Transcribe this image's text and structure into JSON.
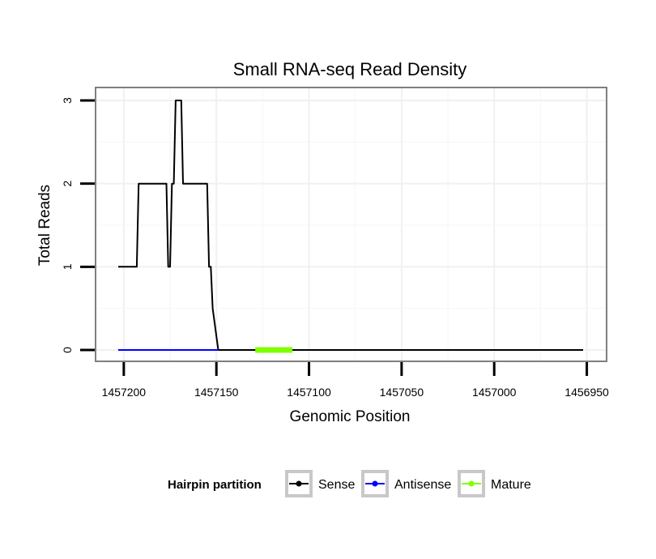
{
  "chart_data": {
    "type": "line",
    "title": "Small RNA-seq Read Density",
    "xlabel": "Genomic Position",
    "ylabel": "Total Reads",
    "x_reversed": true,
    "xlim": [
      1457203,
      1456952
    ],
    "ylim": [
      0,
      3
    ],
    "x_ticks": [
      1457200,
      1457150,
      1457100,
      1457050,
      1457000,
      1456950
    ],
    "x_tick_labels": [
      "1457200",
      "1457150",
      "1457100",
      "1457050",
      "1457000",
      "1456950"
    ],
    "y_ticks": [
      0,
      1,
      2,
      3
    ],
    "y_tick_labels": [
      "0",
      "1",
      "2",
      "3"
    ],
    "grid": true,
    "legend": {
      "title": "Hairpin partition",
      "position": "bottom",
      "entries": [
        {
          "label": "Sense",
          "color": "#000000"
        },
        {
          "label": "Antisense",
          "color": "#0000ff"
        },
        {
          "label": "Mature",
          "color": "#7fff00"
        }
      ]
    },
    "series": [
      {
        "name": "Sense",
        "color": "#000000",
        "x": [
          1457203,
          1457193,
          1457192,
          1457182,
          1457177,
          1457176,
          1457175,
          1457174,
          1457173,
          1457172,
          1457169,
          1457168,
          1457155,
          1457154,
          1457153,
          1457152,
          1457149,
          1456952
        ],
        "y": [
          1,
          1,
          2,
          2,
          2,
          1,
          1,
          2,
          2,
          3,
          3,
          2,
          2,
          1,
          1,
          0.5,
          0,
          0
        ]
      },
      {
        "name": "Antisense",
        "color": "#0000ff",
        "x": [
          1457203,
          1457149
        ],
        "y": [
          0,
          0
        ]
      },
      {
        "name": "Mature",
        "color": "#7fff00",
        "x": [
          1457129,
          1457109
        ],
        "y": [
          0,
          0
        ]
      }
    ]
  }
}
